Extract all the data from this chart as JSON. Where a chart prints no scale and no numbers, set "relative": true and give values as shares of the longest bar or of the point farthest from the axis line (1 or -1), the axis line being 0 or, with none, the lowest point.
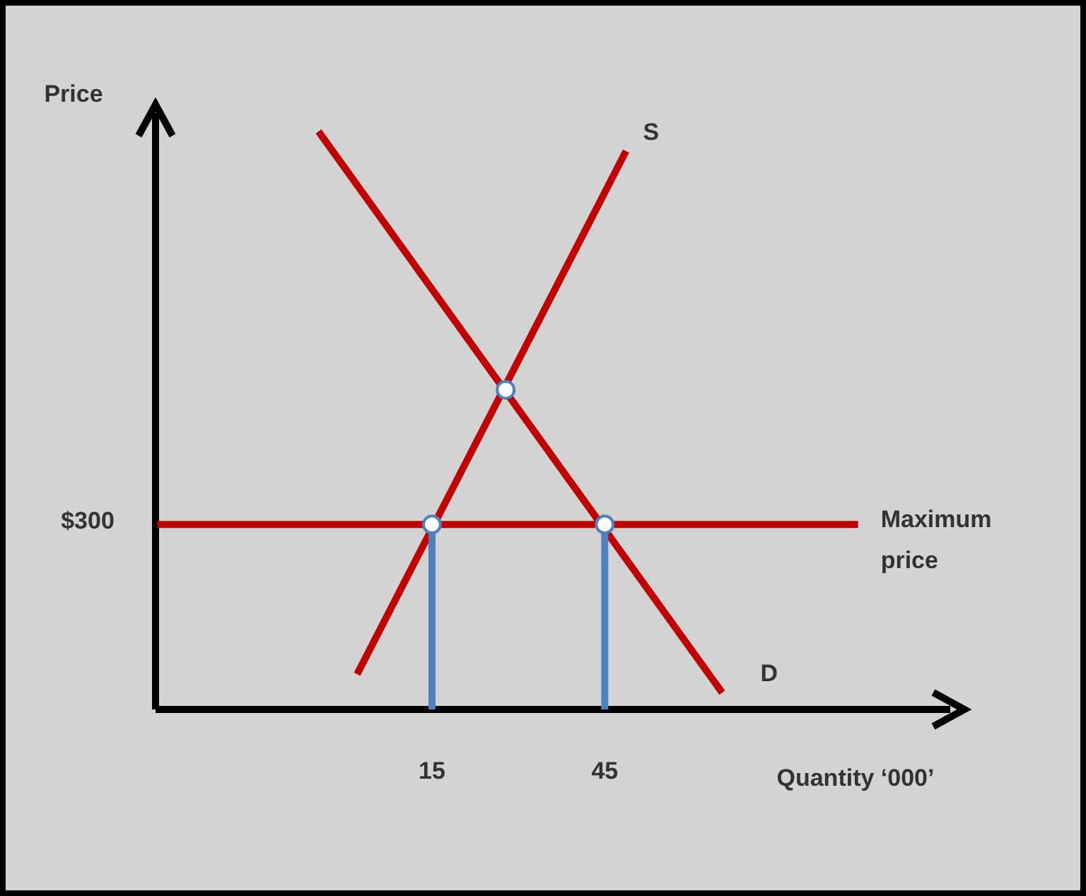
{
  "chart_data": {
    "type": "line",
    "xlabel": "Quantity ‘000’",
    "ylabel": "Price",
    "relative": true,
    "xlim": [
      -33,
      105
    ],
    "xticks": [
      15,
      45
    ],
    "series": [
      {
        "name": "D",
        "color": "#c00000",
        "x": [
          -4.7,
          65.4
        ],
        "values": [
          1,
          0.029
        ]
      },
      {
        "name": "S",
        "color": "#c00000",
        "x": [
          2,
          48.7
        ],
        "values": [
          0.061,
          0.966
        ]
      },
      {
        "name": "Maximum price",
        "color": "#c00000",
        "x": [
          -32.7,
          89
        ],
        "values": [
          0.32,
          0.32
        ]
      },
      {
        "color": "#4f81bd",
        "x": [
          15,
          15
        ],
        "values": [
          0,
          0.32
        ]
      },
      {
        "color": "#4f81bd",
        "x": [
          45,
          45
        ],
        "values": [
          0,
          0.32
        ]
      },
      {
        "type": "scatter",
        "marker": "circle",
        "color": "#ffffff",
        "x": [
          15,
          27.8,
          45
        ],
        "values": [
          0.32,
          0.553,
          0.32
        ]
      }
    ],
    "annotations": [
      "$300"
    ]
  }
}
